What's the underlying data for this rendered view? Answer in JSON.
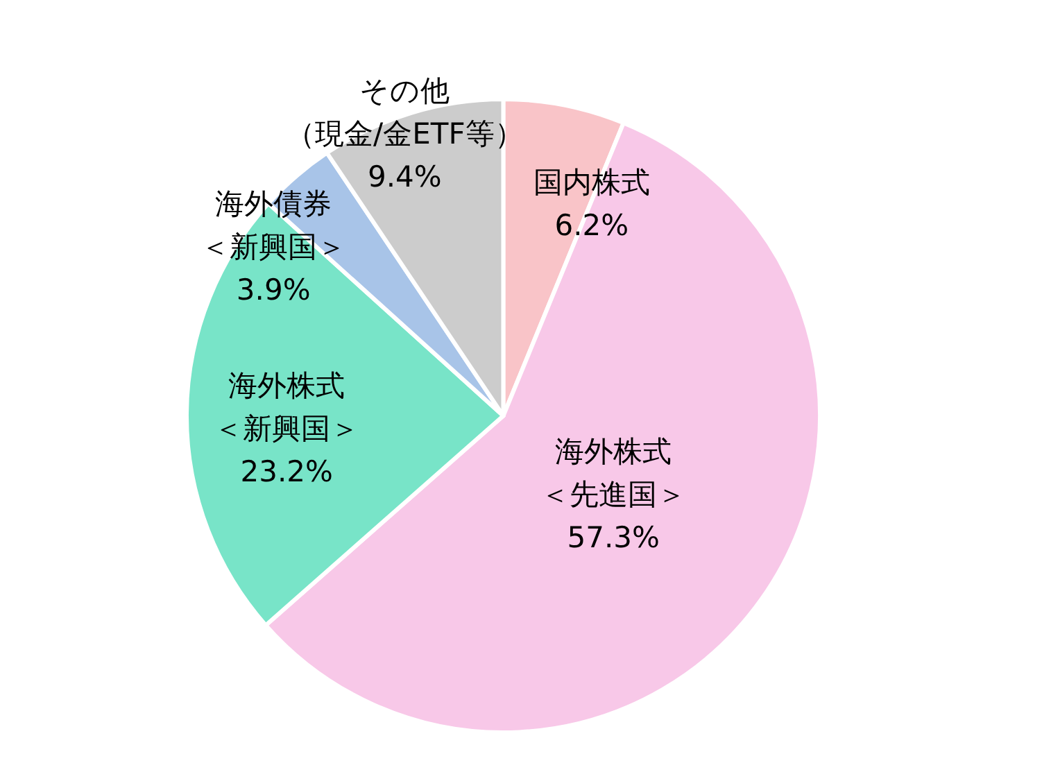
{
  "chart_data": {
    "type": "pie",
    "categories": [
      "国内株式",
      "海外株式＜先進国＞",
      "海外株式＜新興国＞",
      "海外債券＜新興国＞",
      "その他（現金/金ETF等）"
    ],
    "values": [
      6.2,
      57.3,
      23.2,
      3.9,
      9.4
    ],
    "value_labels": [
      "6.2%",
      "57.3%",
      "23.2%",
      "3.9%",
      "9.4%"
    ],
    "colors": [
      "#f9c4c8",
      "#f8c8e8",
      "#78e4c8",
      "#a8c4e8",
      "#cccccc"
    ],
    "legend": false
  }
}
